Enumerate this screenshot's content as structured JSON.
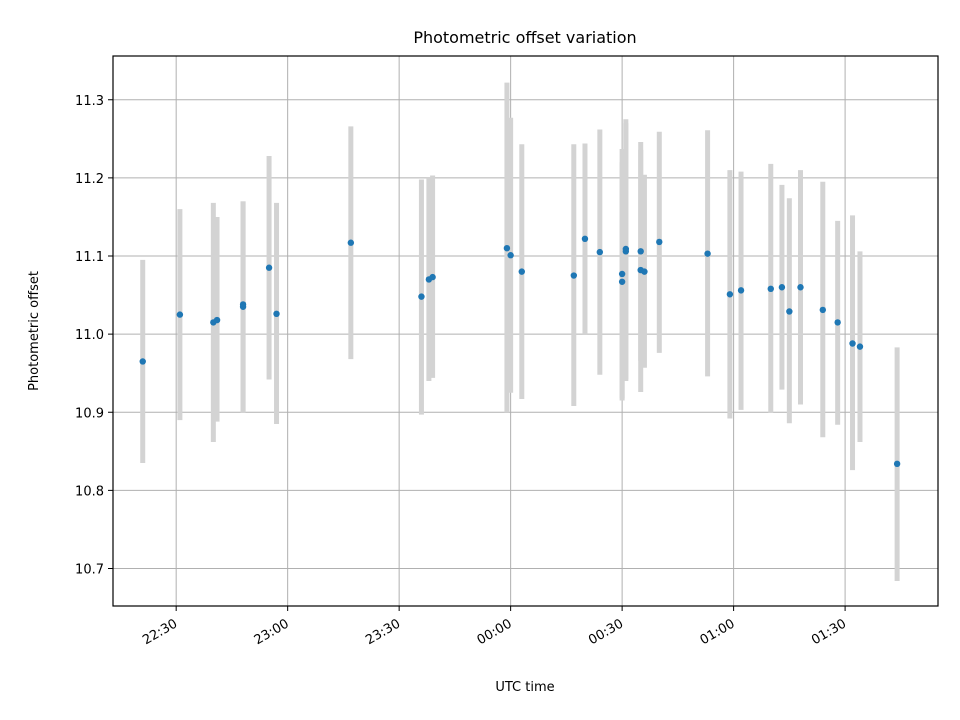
{
  "chart_data": {
    "type": "scatter",
    "title": "Photometric offset variation",
    "xlabel": "UTC time",
    "ylabel": "Photometric offset",
    "x_unit": "UTC time (HH:MM)",
    "x_range": [
      "22:13",
      "01:55"
    ],
    "ylim": [
      10.652,
      11.356
    ],
    "grid": true,
    "x_ticks": [
      "22:30",
      "23:00",
      "23:30",
      "00:00",
      "00:30",
      "01:00",
      "01:30"
    ],
    "y_ticks": [
      "10.7",
      "10.8",
      "10.9",
      "11.0",
      "11.1",
      "11.2",
      "11.3"
    ],
    "error_bar_color": "#d3d3d3",
    "point_color": "#1f77b4",
    "points": [
      {
        "x": "22:21",
        "y": 10.965,
        "lo": 10.835,
        "hi": 11.095
      },
      {
        "x": "22:31",
        "y": 11.025,
        "lo": 10.89,
        "hi": 11.16
      },
      {
        "x": "22:40",
        "y": 11.015,
        "lo": 10.862,
        "hi": 11.168
      },
      {
        "x": "22:41",
        "y": 11.018,
        "lo": 10.888,
        "hi": 11.15
      },
      {
        "x": "22:48",
        "y": 11.038,
        "lo": 10.9,
        "hi": 11.17
      },
      {
        "x": "22:48",
        "y": 11.035,
        "lo": 10.9,
        "hi": 11.17
      },
      {
        "x": "22:55",
        "y": 11.085,
        "lo": 10.942,
        "hi": 11.228
      },
      {
        "x": "22:57",
        "y": 11.026,
        "lo": 10.885,
        "hi": 11.168
      },
      {
        "x": "23:17",
        "y": 11.117,
        "lo": 10.968,
        "hi": 11.266
      },
      {
        "x": "23:36",
        "y": 11.048,
        "lo": 10.897,
        "hi": 11.198
      },
      {
        "x": "23:38",
        "y": 11.07,
        "lo": 10.94,
        "hi": 11.2
      },
      {
        "x": "23:39",
        "y": 11.073,
        "lo": 10.944,
        "hi": 11.203
      },
      {
        "x": "23:59",
        "y": 11.11,
        "lo": 10.9,
        "hi": 11.322
      },
      {
        "x": "00:00",
        "y": 11.101,
        "lo": 10.925,
        "hi": 11.277
      },
      {
        "x": "00:03",
        "y": 11.08,
        "lo": 10.917,
        "hi": 11.243
      },
      {
        "x": "00:17",
        "y": 11.075,
        "lo": 10.908,
        "hi": 11.243
      },
      {
        "x": "00:20",
        "y": 11.122,
        "lo": 11.0,
        "hi": 11.244
      },
      {
        "x": "00:24",
        "y": 11.105,
        "lo": 10.948,
        "hi": 11.262
      },
      {
        "x": "00:30",
        "y": 11.067,
        "lo": 10.915,
        "hi": 11.22
      },
      {
        "x": "00:30",
        "y": 11.077,
        "lo": 10.918,
        "hi": 11.237
      },
      {
        "x": "00:31",
        "y": 11.109,
        "lo": 10.942,
        "hi": 11.275
      },
      {
        "x": "00:31",
        "y": 11.106,
        "lo": 10.94,
        "hi": 11.27
      },
      {
        "x": "00:35",
        "y": 11.082,
        "lo": 10.926,
        "hi": 11.236
      },
      {
        "x": "00:35",
        "y": 11.106,
        "lo": 10.966,
        "hi": 11.246
      },
      {
        "x": "00:36",
        "y": 11.08,
        "lo": 10.957,
        "hi": 11.204
      },
      {
        "x": "00:40",
        "y": 11.118,
        "lo": 10.976,
        "hi": 11.259
      },
      {
        "x": "00:53",
        "y": 11.103,
        "lo": 10.946,
        "hi": 11.261
      },
      {
        "x": "00:59",
        "y": 11.051,
        "lo": 10.892,
        "hi": 11.21
      },
      {
        "x": "01:02",
        "y": 11.056,
        "lo": 10.903,
        "hi": 11.208
      },
      {
        "x": "01:10",
        "y": 11.058,
        "lo": 10.899,
        "hi": 11.218
      },
      {
        "x": "01:13",
        "y": 11.06,
        "lo": 10.929,
        "hi": 11.191
      },
      {
        "x": "01:15",
        "y": 11.029,
        "lo": 10.886,
        "hi": 11.174
      },
      {
        "x": "01:18",
        "y": 11.06,
        "lo": 10.91,
        "hi": 11.21
      },
      {
        "x": "01:24",
        "y": 11.031,
        "lo": 10.868,
        "hi": 11.195
      },
      {
        "x": "01:28",
        "y": 11.015,
        "lo": 10.884,
        "hi": 11.145
      },
      {
        "x": "01:32",
        "y": 10.988,
        "lo": 10.826,
        "hi": 11.152
      },
      {
        "x": "01:34",
        "y": 10.984,
        "lo": 10.862,
        "hi": 11.106
      },
      {
        "x": "01:44",
        "y": 10.834,
        "lo": 10.684,
        "hi": 10.983
      }
    ]
  }
}
